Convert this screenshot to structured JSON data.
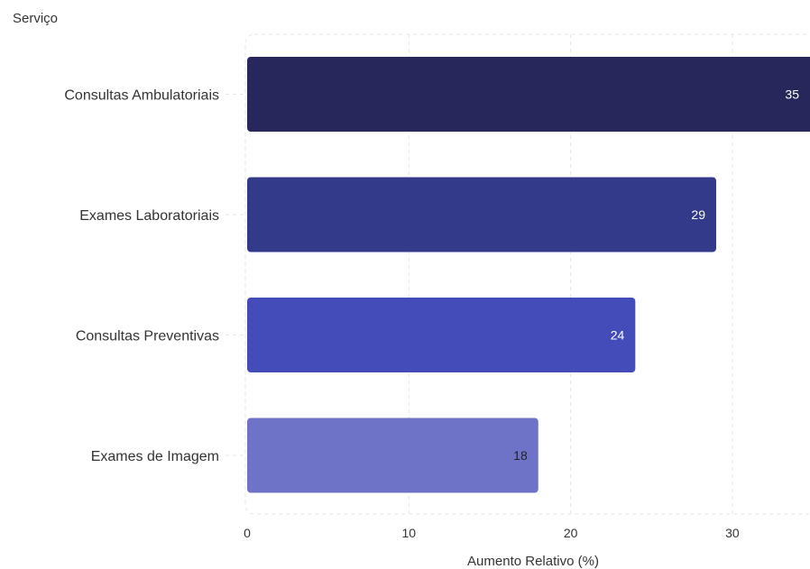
{
  "chart_data": {
    "type": "bar",
    "orientation": "horizontal",
    "ylabel": "Serviço",
    "xlabel": "Aumento Relativo (%)",
    "categories": [
      "Consultas Ambulatoriais",
      "Exames Laboratoriais",
      "Consultas Preventivas",
      "Exames de Imagem"
    ],
    "values": [
      35,
      29,
      24,
      18
    ],
    "data_labels": [
      "35",
      "29",
      "24",
      "18"
    ],
    "bar_colors": [
      "#27275c",
      "#333a8a",
      "#434cb8",
      "#6f73c8"
    ],
    "data_label_colors": [
      "#ffffff",
      "#ffffff",
      "#ffffff",
      "#222222"
    ],
    "x_ticks": [
      0,
      10,
      20,
      30
    ],
    "x_tick_labels": [
      "0",
      "10",
      "20",
      "30"
    ],
    "xlim": [
      0,
      34.8
    ],
    "grid": true
  }
}
